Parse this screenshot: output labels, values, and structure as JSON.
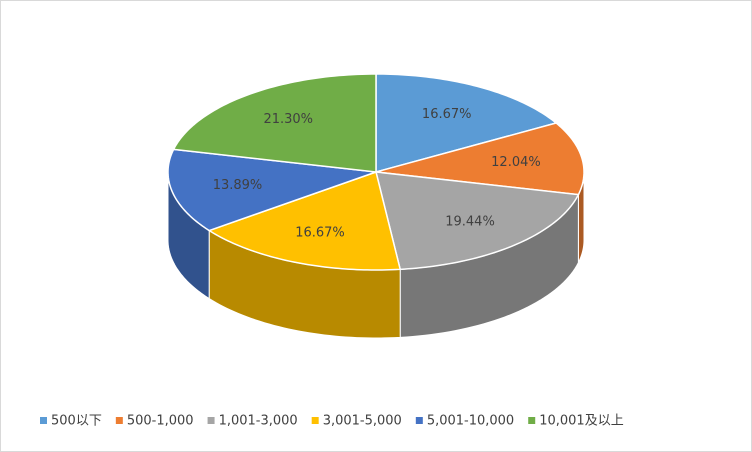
{
  "chart_data": {
    "type": "pie3d",
    "categories": [
      "500以下",
      "500-1,000",
      "1,001-3,000",
      "3,001-5,000",
      "5,001-10,000",
      "10,001及以上"
    ],
    "values": [
      16.67,
      12.04,
      19.44,
      16.67,
      13.89,
      21.3
    ],
    "value_labels": [
      "16.67%",
      "12.04%",
      "19.44%",
      "16.67%",
      "13.89%",
      "21.30%"
    ],
    "colors": [
      "#5B9BD5",
      "#ED7D31",
      "#A5A5A5",
      "#FFC000",
      "#4472C4",
      "#70AD47"
    ],
    "legend": "bottom"
  }
}
